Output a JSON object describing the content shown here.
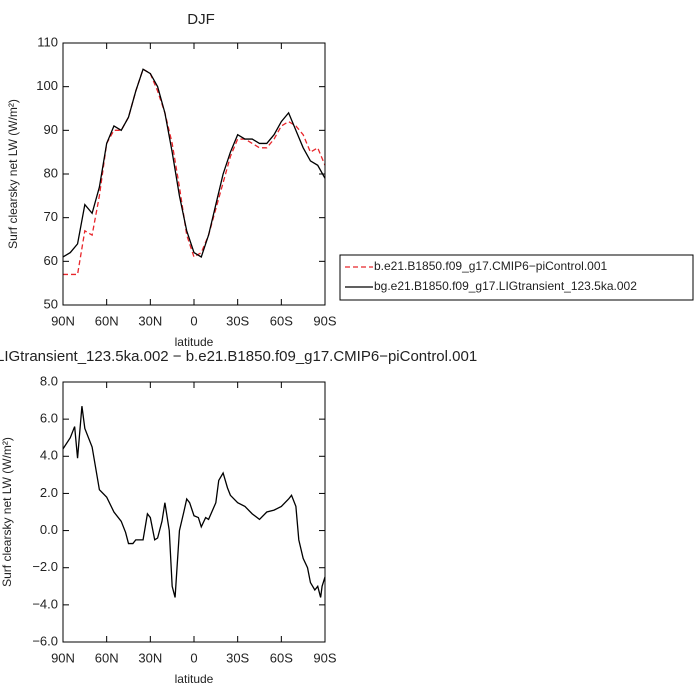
{
  "chart_data": [
    {
      "type": "line",
      "title": "DJF",
      "xlabel": "latitude",
      "ylabel": "Surf clearsky net LW (W/m²)",
      "x": [
        90,
        85,
        80,
        75,
        70,
        65,
        60,
        55,
        50,
        45,
        40,
        35,
        30,
        25,
        20,
        15,
        10,
        5,
        0,
        -5,
        -10,
        -15,
        -20,
        -25,
        -30,
        -35,
        -40,
        -45,
        -50,
        -55,
        -60,
        -65,
        -70,
        -75,
        -80,
        -85,
        -90
      ],
      "series": [
        {
          "name": "b.e21.B1850.f09_g17.CMIP6−piControl.001",
          "color": "#e8262b",
          "linestyle": "dashed",
          "values": [
            57,
            57,
            57,
            67,
            66,
            75,
            87,
            90,
            90,
            93,
            99,
            104,
            103,
            99,
            94,
            87,
            77,
            66,
            61,
            62,
            66,
            72,
            78,
            84,
            88,
            88,
            87,
            86,
            86,
            88,
            91,
            92,
            91,
            89,
            85,
            86,
            82
          ]
        },
        {
          "name": "bg.e21.B1850.f09_g17.LIGtransient_123.5ka.002",
          "color": "#000000",
          "linestyle": "solid",
          "values": [
            61,
            62,
            64,
            73,
            71,
            77,
            87,
            91,
            90,
            93,
            99,
            104,
            103,
            100,
            94,
            85,
            75,
            67,
            62,
            61,
            66,
            73,
            80,
            85,
            89,
            88,
            88,
            87,
            87,
            89,
            92,
            94,
            90,
            86,
            83,
            82,
            79
          ]
        }
      ],
      "xlim": [
        90,
        -90
      ],
      "xticks": [
        {
          "value": 90,
          "label": "90N"
        },
        {
          "value": 60,
          "label": "60N"
        },
        {
          "value": 30,
          "label": "30N"
        },
        0,
        {
          "value": -30,
          "label": "30S"
        },
        {
          "value": -60,
          "label": "60S"
        },
        {
          "value": -90,
          "label": "90S"
        }
      ],
      "ylim": [
        50,
        110
      ],
      "yticks": [
        50,
        60,
        70,
        80,
        90,
        100,
        110
      ],
      "legend": "right"
    },
    {
      "type": "line",
      "title": "LIGtransient_123.5ka.002 − b.e21.B1850.f09_g17.CMIP6−piControl.001",
      "xlabel": "latitude",
      "ylabel": "Surf clearsky net LW (W/m²)",
      "x": [
        90,
        85,
        82,
        80,
        77,
        75,
        70,
        65,
        60,
        55,
        50,
        47,
        45,
        42,
        40,
        35,
        32,
        30,
        27,
        25,
        22,
        20,
        17,
        15,
        13,
        10,
        7,
        5,
        3,
        0,
        -3,
        -5,
        -8,
        -10,
        -15,
        -17,
        -20,
        -23,
        -25,
        -30,
        -35,
        -40,
        -45,
        -50,
        -55,
        -60,
        -65,
        -67,
        -70,
        -72,
        -75,
        -78,
        -80,
        -83,
        -85,
        -87,
        -88,
        -90
      ],
      "series": [
        {
          "color": "#000000",
          "linestyle": "solid",
          "values": [
            4.4,
            5.0,
            5.6,
            3.9,
            6.7,
            5.5,
            4.5,
            2.2,
            1.8,
            1.0,
            0.5,
            -0.1,
            -0.7,
            -0.7,
            -0.5,
            -0.5,
            0.9,
            0.7,
            -0.5,
            -0.4,
            0.5,
            1.5,
            0.0,
            -3.0,
            -3.6,
            0.0,
            1.0,
            1.7,
            1.5,
            0.8,
            0.7,
            0.2,
            0.7,
            0.6,
            1.5,
            2.7,
            3.1,
            2.3,
            1.9,
            1.5,
            1.3,
            0.9,
            0.6,
            1.0,
            1.1,
            1.3,
            1.7,
            1.9,
            1.3,
            -0.5,
            -1.5,
            -2.0,
            -2.8,
            -3.2,
            -3.0,
            -3.6,
            -3.0,
            -2.5
          ]
        }
      ],
      "xlim": [
        90,
        -90
      ],
      "xticks": [
        {
          "value": 90,
          "label": "90N"
        },
        {
          "value": 60,
          "label": "60N"
        },
        {
          "value": 30,
          "label": "30N"
        },
        0,
        {
          "value": -30,
          "label": "30S"
        },
        {
          "value": -60,
          "label": "60S"
        },
        {
          "value": -90,
          "label": "90S"
        }
      ],
      "ylim": [
        -6,
        8
      ],
      "yticks": [
        {
          "value": -6,
          "label": "−6.0"
        },
        {
          "value": -4,
          "label": "−4.0"
        },
        {
          "value": -2,
          "label": "−2.0"
        },
        {
          "value": 0,
          "label": "0.0"
        },
        {
          "value": 2,
          "label": "2.0"
        },
        {
          "value": 4,
          "label": "4.0"
        },
        {
          "value": 6,
          "label": "6.0"
        },
        {
          "value": 8,
          "label": "8.0"
        }
      ]
    }
  ]
}
